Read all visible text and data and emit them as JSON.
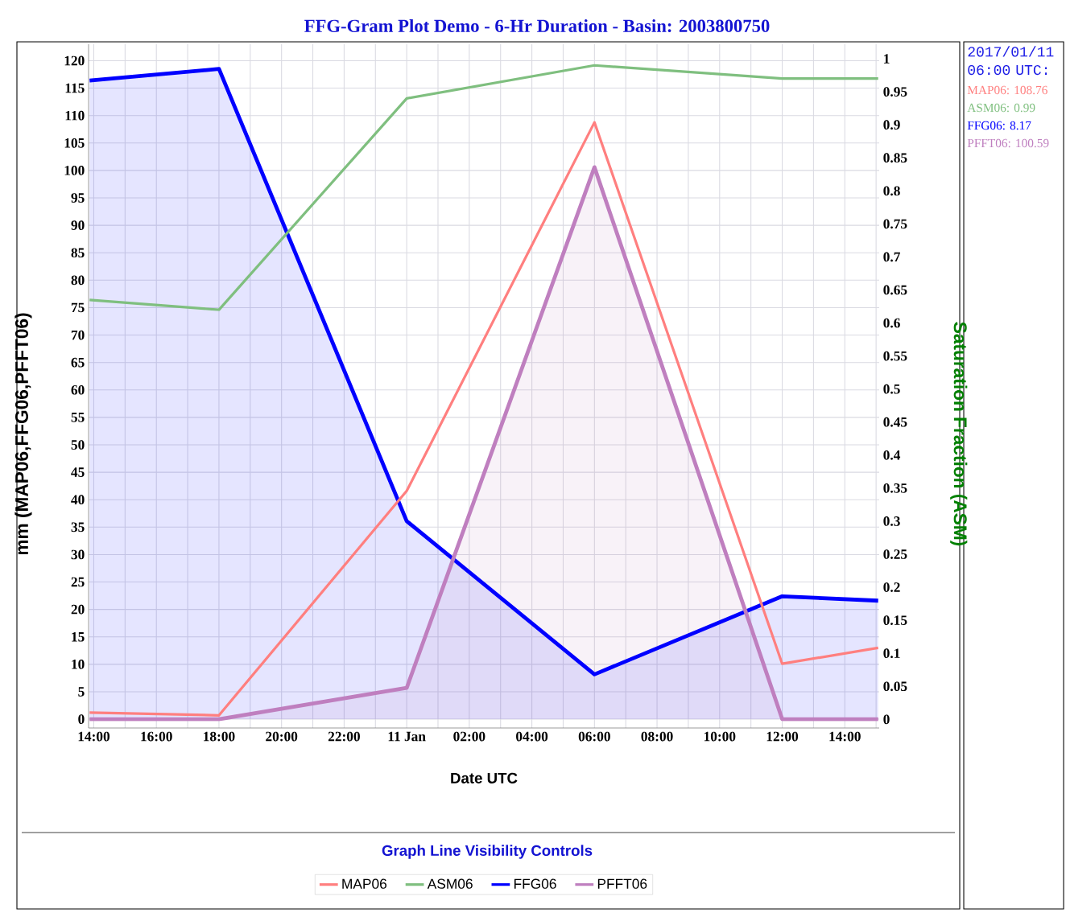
{
  "chart_data": {
    "type": "line",
    "title": "FFG-Gram Plot Demo - 6-Hr Duration  -  Basin: 2003800750",
    "xlabel": "Date UTC",
    "ylabel": "mm (MAP06,FFG06,PFFT06)",
    "y2label": "Saturation Fraction (ASM)",
    "legend_title": "Graph Line Visibility Controls",
    "legend": "bottom",
    "grid": true,
    "x": [
      "2017-01-10T13:52",
      "2017-01-10T18:00",
      "2017-01-11T00:00",
      "2017-01-11T06:00",
      "2017-01-11T12:00",
      "2017-01-11T15:04"
    ],
    "series": [
      {
        "name": "MAP06",
        "color": "#ff7f7f",
        "values": [
          1.2,
          0.7,
          41.6,
          108.76,
          10.1,
          13
        ]
      },
      {
        "name": "ASM06",
        "color": "#7fbf7f",
        "axis": "y2",
        "values": [
          0.635,
          0.62,
          0.94,
          0.99,
          0.97,
          0.97
        ]
      },
      {
        "name": "FFG06",
        "color": "#0000ff",
        "type": "area",
        "values": [
          116.4,
          118.5,
          36.1,
          8.17,
          22.4,
          21.6
        ]
      },
      {
        "name": "PFFT06",
        "color": "#bf7fbf",
        "type": "area",
        "values": [
          0,
          0,
          5.7,
          100.59,
          0,
          0
        ]
      }
    ],
    "xlim": [
      "2017-01-10T13:50",
      "2017-01-11T15:06"
    ],
    "xticks": [
      {
        "value": "2017-01-10T14:00",
        "label": "14:00"
      },
      {
        "value": "2017-01-10T15:00",
        "label": null
      },
      {
        "value": "2017-01-10T16:00",
        "label": "16:00"
      },
      {
        "value": "2017-01-10T17:00",
        "label": null
      },
      {
        "value": "2017-01-10T18:00",
        "label": "18:00"
      },
      {
        "value": "2017-01-10T19:00",
        "label": null
      },
      {
        "value": "2017-01-10T20:00",
        "label": "20:00"
      },
      {
        "value": "2017-01-10T21:00",
        "label": null
      },
      {
        "value": "2017-01-10T22:00",
        "label": "22:00"
      },
      {
        "value": "2017-01-10T23:00",
        "label": null
      },
      {
        "value": "2017-01-11T00:00",
        "label": "11 Jan"
      },
      {
        "value": "2017-01-11T01:00",
        "label": null
      },
      {
        "value": "2017-01-11T02:00",
        "label": "02:00"
      },
      {
        "value": "2017-01-11T03:00",
        "label": null
      },
      {
        "value": "2017-01-11T04:00",
        "label": "04:00"
      },
      {
        "value": "2017-01-11T05:00",
        "label": null
      },
      {
        "value": "2017-01-11T06:00",
        "label": "06:00"
      },
      {
        "value": "2017-01-11T07:00",
        "label": null
      },
      {
        "value": "2017-01-11T08:00",
        "label": "08:00"
      },
      {
        "value": "2017-01-11T09:00",
        "label": null
      },
      {
        "value": "2017-01-11T10:00",
        "label": "10:00"
      },
      {
        "value": "2017-01-11T11:00",
        "label": null
      },
      {
        "value": "2017-01-11T12:00",
        "label": "12:00"
      },
      {
        "value": "2017-01-11T13:00",
        "label": null
      },
      {
        "value": "2017-01-11T14:00",
        "label": "14:00"
      },
      {
        "value": "2017-01-11T15:00",
        "label": null
      }
    ],
    "ylim": [
      -1.6,
      123
    ],
    "yticks": [
      0,
      5,
      10,
      15,
      20,
      25,
      30,
      35,
      40,
      45,
      50,
      55,
      60,
      65,
      70,
      75,
      80,
      85,
      90,
      95,
      100,
      105,
      110,
      115,
      120
    ],
    "y2lim": [
      -0.013,
      1.022
    ],
    "y2ticks": [
      0,
      0.05,
      0.1,
      0.15,
      0.2,
      0.25,
      0.3,
      0.35,
      0.4,
      0.45,
      0.5,
      0.55,
      0.6,
      0.65,
      0.7,
      0.75,
      0.8,
      0.85,
      0.9,
      0.95,
      1
    ],
    "annotations": [
      "2017/01/11 06:00 UTC:",
      "MAP06: 108.76",
      "ASM06: 0.99",
      "FFG06: 8.17",
      "PFFT06: 100.59"
    ]
  }
}
